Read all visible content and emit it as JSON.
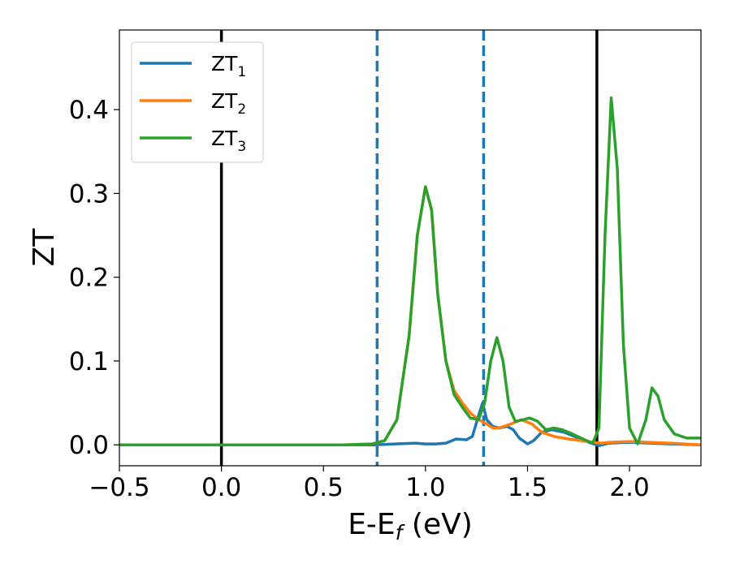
{
  "chart_data": {
    "type": "line",
    "xlabel": "E-E",
    "xlabel_sub": "f",
    "xlabel_unit": " (eV)",
    "ylabel": "ZT",
    "xlim": [
      -0.5,
      2.35
    ],
    "ylim": [
      -0.025,
      0.495
    ],
    "xticks": [
      -0.5,
      0.0,
      0.5,
      1.0,
      1.5,
      2.0
    ],
    "xtick_labels": [
      "−0.5",
      "0.0",
      "0.5",
      "1.0",
      "1.5",
      "2.0"
    ],
    "yticks": [
      0.0,
      0.1,
      0.2,
      0.3,
      0.4
    ],
    "ytick_labels": [
      "0.0",
      "0.1",
      "0.2",
      "0.3",
      "0.4"
    ],
    "grid": false,
    "legend_position": "top-left",
    "vlines": [
      {
        "x": 0.0,
        "style": "solid",
        "color": "#000000"
      },
      {
        "x": 0.763,
        "style": "dashed",
        "color": "#1f77b4"
      },
      {
        "x": 1.285,
        "style": "dashed",
        "color": "#1f77b4"
      },
      {
        "x": 1.84,
        "style": "solid",
        "color": "#000000"
      }
    ],
    "series": [
      {
        "name": "ZT",
        "name_sub": "1",
        "color": "#1f77b4",
        "points": [
          [
            -0.5,
            0
          ],
          [
            0.6,
            0
          ],
          [
            0.75,
            0
          ],
          [
            0.85,
            0.001
          ],
          [
            0.95,
            0.002
          ],
          [
            1.0,
            0.001
          ],
          [
            1.05,
            0.001
          ],
          [
            1.1,
            0.002
          ],
          [
            1.15,
            0.007
          ],
          [
            1.2,
            0.006
          ],
          [
            1.23,
            0.01
          ],
          [
            1.26,
            0.035
          ],
          [
            1.28,
            0.05
          ],
          [
            1.3,
            0.03
          ],
          [
            1.33,
            0.022
          ],
          [
            1.36,
            0.02
          ],
          [
            1.4,
            0.022
          ],
          [
            1.43,
            0.018
          ],
          [
            1.46,
            0.008
          ],
          [
            1.5,
            0.001
          ],
          [
            1.53,
            0.005
          ],
          [
            1.57,
            0.015
          ],
          [
            1.62,
            0.018
          ],
          [
            1.68,
            0.015
          ],
          [
            1.75,
            0.008
          ],
          [
            1.8,
            0.003
          ],
          [
            1.85,
            -0.001
          ],
          [
            1.9,
            0.002
          ],
          [
            2.0,
            0.003
          ],
          [
            2.1,
            0.002
          ],
          [
            2.2,
            0.001
          ],
          [
            2.35,
            0
          ]
        ]
      },
      {
        "name": "ZT",
        "name_sub": "2",
        "color": "#ff7f0e",
        "points": [
          [
            -0.5,
            0
          ],
          [
            0.6,
            0
          ],
          [
            0.74,
            0.001
          ],
          [
            0.8,
            0.005
          ],
          [
            0.86,
            0.03
          ],
          [
            0.92,
            0.13
          ],
          [
            0.96,
            0.25
          ],
          [
            1.0,
            0.308
          ],
          [
            1.03,
            0.28
          ],
          [
            1.06,
            0.18
          ],
          [
            1.1,
            0.1
          ],
          [
            1.14,
            0.065
          ],
          [
            1.18,
            0.05
          ],
          [
            1.22,
            0.038
          ],
          [
            1.26,
            0.03
          ],
          [
            1.3,
            0.025
          ],
          [
            1.33,
            0.02
          ],
          [
            1.36,
            0.02
          ],
          [
            1.42,
            0.025
          ],
          [
            1.47,
            0.03
          ],
          [
            1.52,
            0.025
          ],
          [
            1.57,
            0.015
          ],
          [
            1.63,
            0.01
          ],
          [
            1.7,
            0.007
          ],
          [
            1.76,
            0.005
          ],
          [
            1.82,
            0.003
          ],
          [
            1.86,
            0.002
          ],
          [
            1.9,
            0.003
          ],
          [
            2.0,
            0.004
          ],
          [
            2.1,
            0.003
          ],
          [
            2.2,
            0.002
          ],
          [
            2.35,
            0
          ]
        ]
      },
      {
        "name": "ZT",
        "name_sub": "3",
        "color": "#2ca02c",
        "points": [
          [
            -0.5,
            0
          ],
          [
            0.6,
            0
          ],
          [
            0.74,
            0.001
          ],
          [
            0.8,
            0.005
          ],
          [
            0.86,
            0.03
          ],
          [
            0.92,
            0.13
          ],
          [
            0.96,
            0.25
          ],
          [
            1.0,
            0.308
          ],
          [
            1.03,
            0.28
          ],
          [
            1.06,
            0.18
          ],
          [
            1.1,
            0.1
          ],
          [
            1.14,
            0.06
          ],
          [
            1.18,
            0.045
          ],
          [
            1.22,
            0.032
          ],
          [
            1.26,
            0.03
          ],
          [
            1.29,
            0.05
          ],
          [
            1.32,
            0.1
          ],
          [
            1.35,
            0.128
          ],
          [
            1.38,
            0.1
          ],
          [
            1.41,
            0.045
          ],
          [
            1.44,
            0.028
          ],
          [
            1.48,
            0.03
          ],
          [
            1.51,
            0.032
          ],
          [
            1.55,
            0.028
          ],
          [
            1.59,
            0.018
          ],
          [
            1.63,
            0.02
          ],
          [
            1.67,
            0.018
          ],
          [
            1.72,
            0.013
          ],
          [
            1.78,
            0.006
          ],
          [
            1.82,
            0.002
          ],
          [
            1.85,
            0.02
          ],
          [
            1.88,
            0.25
          ],
          [
            1.91,
            0.414
          ],
          [
            1.94,
            0.33
          ],
          [
            1.97,
            0.12
          ],
          [
            2.0,
            0.02
          ],
          [
            2.04,
            0.001
          ],
          [
            2.08,
            0.03
          ],
          [
            2.11,
            0.068
          ],
          [
            2.14,
            0.058
          ],
          [
            2.17,
            0.03
          ],
          [
            2.22,
            0.013
          ],
          [
            2.28,
            0.008
          ],
          [
            2.35,
            0.008
          ]
        ]
      }
    ]
  }
}
